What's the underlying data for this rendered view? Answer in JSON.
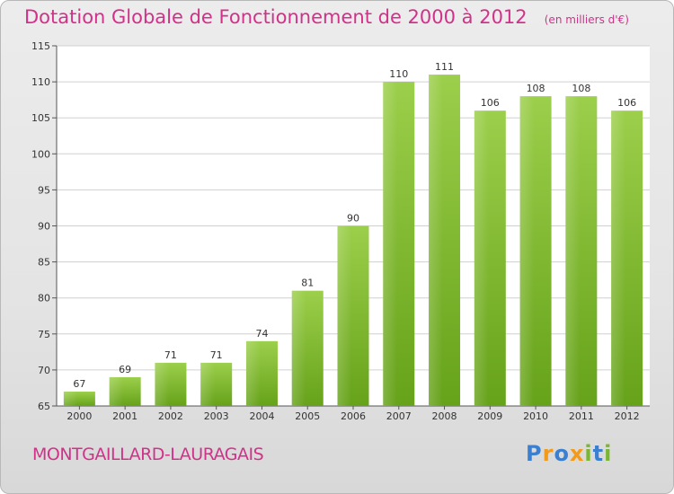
{
  "title": "Dotation Globale de Fonctionnement de 2000 à 2012",
  "unit": "(en milliers d'€)",
  "commune": "MONTGAILLARD-LAURAGAIS",
  "logo": {
    "text": "Proxiti",
    "letters": [
      {
        "char": "P",
        "color": "#3a7fd1"
      },
      {
        "char": "r",
        "color": "#f39a1a"
      },
      {
        "char": "o",
        "color": "#3a7fd1"
      },
      {
        "char": "x",
        "color": "#f39a1a"
      },
      {
        "char": "i",
        "color": "#7ab62f"
      },
      {
        "char": "t",
        "color": "#3a7fd1"
      },
      {
        "char": "i",
        "color": "#7ab62f"
      }
    ]
  },
  "colors": {
    "title": "#d2318a",
    "bar_light": "#9ccf4b",
    "bar_dark": "#66a21a",
    "grid": "#d0d0d0"
  },
  "chart_data": {
    "type": "bar",
    "categories": [
      "2000",
      "2001",
      "2002",
      "2003",
      "2004",
      "2005",
      "2006",
      "2007",
      "2008",
      "2009",
      "2010",
      "2011",
      "2012"
    ],
    "values": [
      67,
      69,
      71,
      71,
      74,
      81,
      90,
      110,
      111,
      106,
      108,
      108,
      106
    ],
    "title": "Dotation Globale de Fonctionnement de 2000 à 2012",
    "subtitle": "(en milliers d'€)",
    "xlabel": "",
    "ylabel": "",
    "ylim": [
      65,
      115
    ],
    "yticks": [
      65,
      70,
      75,
      80,
      85,
      90,
      95,
      100,
      105,
      110,
      115
    ],
    "grid": true,
    "data_labels": true
  }
}
